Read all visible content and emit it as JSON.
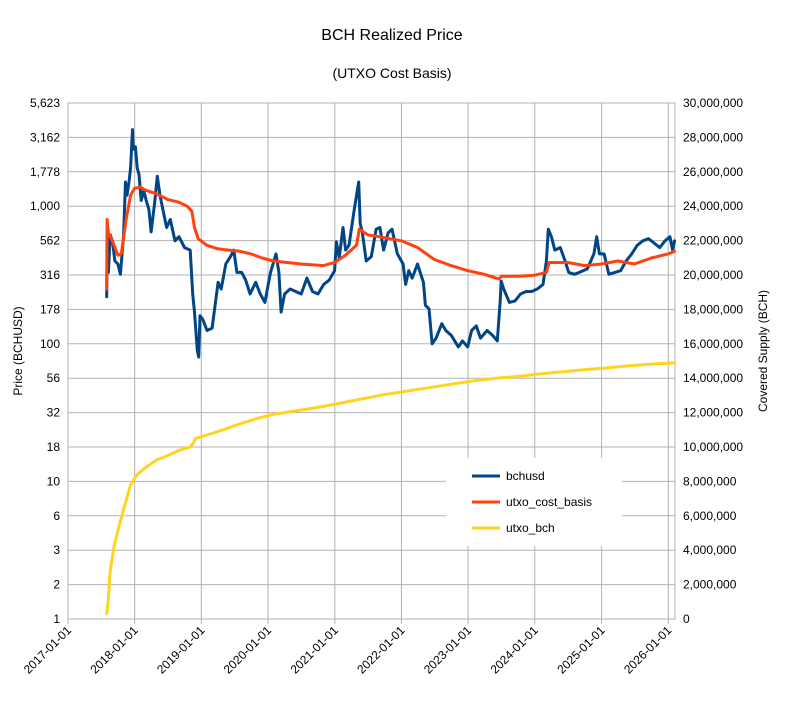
{
  "chart_data": {
    "type": "line",
    "title": "BCH Realized Price",
    "subtitle": "(UTXO Cost Basis)",
    "ylabel_left": "Price (BCHUSD)",
    "ylabel_right": "Covered Supply (BCH)",
    "y_scale_left": "log",
    "ylim_left": [
      1,
      5623
    ],
    "ylim_right": [
      0,
      30000000
    ],
    "xlim": [
      "2017-01-01",
      "2026-02-07"
    ],
    "grid": true,
    "legend_position": "center-right",
    "left_ticks": [
      {
        "value": 1,
        "label": "1"
      },
      {
        "value": 1.778,
        "label": "2"
      },
      {
        "value": 3.162,
        "label": "3"
      },
      {
        "value": 5.623,
        "label": "6"
      },
      {
        "value": 10,
        "label": "10"
      },
      {
        "value": 17.78,
        "label": "18"
      },
      {
        "value": 31.62,
        "label": "32"
      },
      {
        "value": 56.23,
        "label": "56"
      },
      {
        "value": 100,
        "label": "100"
      },
      {
        "value": 177.8,
        "label": "178"
      },
      {
        "value": 316.2,
        "label": "316"
      },
      {
        "value": 562.3,
        "label": "562"
      },
      {
        "value": 1000,
        "label": "1,000"
      },
      {
        "value": 1778,
        "label": "1,778"
      },
      {
        "value": 3162,
        "label": "3,162"
      },
      {
        "value": 5623,
        "label": "5,623"
      }
    ],
    "right_ticks": [
      {
        "value": 0,
        "label": "0"
      },
      {
        "value": 2000000,
        "label": "2,000,000"
      },
      {
        "value": 4000000,
        "label": "4,000,000"
      },
      {
        "value": 6000000,
        "label": "6,000,000"
      },
      {
        "value": 8000000,
        "label": "8,000,000"
      },
      {
        "value": 10000000,
        "label": "10,000,000"
      },
      {
        "value": 12000000,
        "label": "12,000,000"
      },
      {
        "value": 14000000,
        "label": "14,000,000"
      },
      {
        "value": 16000000,
        "label": "16,000,000"
      },
      {
        "value": 18000000,
        "label": "18,000,000"
      },
      {
        "value": 20000000,
        "label": "20,000,000"
      },
      {
        "value": 22000000,
        "label": "22,000,000"
      },
      {
        "value": 24000000,
        "label": "24,000,000"
      },
      {
        "value": 26000000,
        "label": "26,000,000"
      },
      {
        "value": 28000000,
        "label": "28,000,000"
      },
      {
        "value": 30000000,
        "label": "30,000,000"
      }
    ],
    "x_ticks": [
      "2017-01-01",
      "2018-01-01",
      "2019-01-01",
      "2020-01-01",
      "2021-01-01",
      "2022-01-01",
      "2023-01-01",
      "2024-01-01",
      "2025-01-01",
      "2026-01-01"
    ],
    "series": [
      {
        "name": "bchusd",
        "color": "#004586",
        "axis": "left",
        "points": [
          [
            "2017-08-01",
            220
          ],
          [
            "2017-08-04",
            700
          ],
          [
            "2017-08-10",
            330
          ],
          [
            "2017-08-20",
            620
          ],
          [
            "2017-09-01",
            560
          ],
          [
            "2017-09-15",
            400
          ],
          [
            "2017-10-01",
            380
          ],
          [
            "2017-10-15",
            320
          ],
          [
            "2017-11-01",
            600
          ],
          [
            "2017-11-12",
            1500
          ],
          [
            "2017-11-20",
            1200
          ],
          [
            "2017-12-01",
            1500
          ],
          [
            "2017-12-10",
            1900
          ],
          [
            "2017-12-20",
            3600
          ],
          [
            "2017-12-24",
            2600
          ],
          [
            "2018-01-05",
            2700
          ],
          [
            "2018-01-15",
            1900
          ],
          [
            "2018-01-25",
            1700
          ],
          [
            "2018-02-06",
            1100
          ],
          [
            "2018-02-20",
            1300
          ],
          [
            "2018-03-05",
            1100
          ],
          [
            "2018-03-20",
            950
          ],
          [
            "2018-04-01",
            650
          ],
          [
            "2018-04-20",
            1050
          ],
          [
            "2018-05-05",
            1650
          ],
          [
            "2018-05-20",
            1200
          ],
          [
            "2018-06-01",
            1000
          ],
          [
            "2018-06-25",
            700
          ],
          [
            "2018-07-15",
            800
          ],
          [
            "2018-08-10",
            560
          ],
          [
            "2018-09-01",
            600
          ],
          [
            "2018-10-01",
            500
          ],
          [
            "2018-11-01",
            480
          ],
          [
            "2018-11-15",
            230
          ],
          [
            "2018-11-25",
            170
          ],
          [
            "2018-12-10",
            90
          ],
          [
            "2018-12-18",
            80
          ],
          [
            "2018-12-25",
            160
          ],
          [
            "2019-01-10",
            150
          ],
          [
            "2019-02-01",
            125
          ],
          [
            "2019-03-01",
            130
          ],
          [
            "2019-04-03",
            280
          ],
          [
            "2019-04-20",
            250
          ],
          [
            "2019-05-15",
            380
          ],
          [
            "2019-06-10",
            430
          ],
          [
            "2019-06-28",
            480
          ],
          [
            "2019-07-15",
            330
          ],
          [
            "2019-08-10",
            330
          ],
          [
            "2019-09-01",
            290
          ],
          [
            "2019-09-25",
            230
          ],
          [
            "2019-10-26",
            280
          ],
          [
            "2019-11-20",
            230
          ],
          [
            "2019-12-15",
            200
          ],
          [
            "2020-01-15",
            330
          ],
          [
            "2020-02-14",
            450
          ],
          [
            "2020-03-01",
            330
          ],
          [
            "2020-03-13",
            170
          ],
          [
            "2020-04-01",
            230
          ],
          [
            "2020-05-01",
            250
          ],
          [
            "2020-06-01",
            240
          ],
          [
            "2020-07-01",
            230
          ],
          [
            "2020-08-01",
            300
          ],
          [
            "2020-09-01",
            240
          ],
          [
            "2020-10-01",
            230
          ],
          [
            "2020-11-01",
            270
          ],
          [
            "2020-12-01",
            290
          ],
          [
            "2020-12-31",
            340
          ],
          [
            "2021-01-10",
            550
          ],
          [
            "2021-01-25",
            420
          ],
          [
            "2021-02-15",
            700
          ],
          [
            "2021-03-01",
            480
          ],
          [
            "2021-03-20",
            520
          ],
          [
            "2021-04-15",
            900
          ],
          [
            "2021-05-12",
            1500
          ],
          [
            "2021-05-20",
            750
          ],
          [
            "2021-06-01",
            640
          ],
          [
            "2021-06-22",
            400
          ],
          [
            "2021-07-20",
            430
          ],
          [
            "2021-08-15",
            680
          ],
          [
            "2021-09-05",
            700
          ],
          [
            "2021-09-25",
            480
          ],
          [
            "2021-10-20",
            640
          ],
          [
            "2021-11-10",
            680
          ],
          [
            "2021-12-10",
            450
          ],
          [
            "2022-01-10",
            380
          ],
          [
            "2022-01-24",
            270
          ],
          [
            "2022-02-10",
            340
          ],
          [
            "2022-03-01",
            300
          ],
          [
            "2022-03-30",
            380
          ],
          [
            "2022-05-01",
            280
          ],
          [
            "2022-05-12",
            190
          ],
          [
            "2022-06-01",
            180
          ],
          [
            "2022-06-18",
            100
          ],
          [
            "2022-07-10",
            110
          ],
          [
            "2022-08-10",
            140
          ],
          [
            "2022-09-01",
            125
          ],
          [
            "2022-10-01",
            115
          ],
          [
            "2022-11-09",
            95
          ],
          [
            "2022-12-01",
            105
          ],
          [
            "2022-12-30",
            95
          ],
          [
            "2023-01-20",
            125
          ],
          [
            "2023-02-15",
            135
          ],
          [
            "2023-03-10",
            110
          ],
          [
            "2023-04-15",
            125
          ],
          [
            "2023-05-15",
            115
          ],
          [
            "2023-06-10",
            105
          ],
          [
            "2023-06-25",
            200
          ],
          [
            "2023-07-01",
            285
          ],
          [
            "2023-07-15",
            250
          ],
          [
            "2023-08-15",
            200
          ],
          [
            "2023-09-15",
            205
          ],
          [
            "2023-10-15",
            230
          ],
          [
            "2023-11-15",
            240
          ],
          [
            "2023-12-15",
            240
          ],
          [
            "2024-01-15",
            250
          ],
          [
            "2024-02-15",
            270
          ],
          [
            "2024-03-05",
            400
          ],
          [
            "2024-03-15",
            680
          ],
          [
            "2024-04-01",
            600
          ],
          [
            "2024-04-20",
            480
          ],
          [
            "2024-05-20",
            500
          ],
          [
            "2024-06-15",
            400
          ],
          [
            "2024-07-05",
            330
          ],
          [
            "2024-08-05",
            320
          ],
          [
            "2024-09-01",
            330
          ],
          [
            "2024-10-15",
            350
          ],
          [
            "2024-11-20",
            450
          ],
          [
            "2024-12-05",
            600
          ],
          [
            "2024-12-20",
            450
          ],
          [
            "2025-01-15",
            450
          ],
          [
            "2025-02-10",
            320
          ],
          [
            "2025-03-15",
            330
          ],
          [
            "2025-04-15",
            340
          ],
          [
            "2025-05-15",
            400
          ],
          [
            "2025-06-15",
            450
          ],
          [
            "2025-07-15",
            520
          ],
          [
            "2025-08-15",
            560
          ],
          [
            "2025-09-15",
            580
          ],
          [
            "2025-10-15",
            540
          ],
          [
            "2025-11-15",
            500
          ],
          [
            "2025-12-15",
            560
          ],
          [
            "2026-01-10",
            600
          ],
          [
            "2026-01-25",
            480
          ],
          [
            "2026-02-05",
            560
          ]
        ]
      },
      {
        "name": "utxo_cost_basis",
        "color": "#ff420e",
        "axis": "left",
        "points": [
          [
            "2017-08-01",
            250
          ],
          [
            "2017-08-03",
            800
          ],
          [
            "2017-08-10",
            640
          ],
          [
            "2017-09-01",
            560
          ],
          [
            "2017-10-01",
            440
          ],
          [
            "2017-10-20",
            450
          ],
          [
            "2017-11-15",
            800
          ],
          [
            "2017-12-10",
            1200
          ],
          [
            "2017-12-31",
            1350
          ],
          [
            "2018-01-31",
            1380
          ],
          [
            "2018-02-28",
            1310
          ],
          [
            "2018-04-30",
            1230
          ],
          [
            "2018-06-30",
            1120
          ],
          [
            "2018-08-31",
            1070
          ],
          [
            "2018-10-15",
            1000
          ],
          [
            "2018-11-10",
            920
          ],
          [
            "2018-11-25",
            700
          ],
          [
            "2018-12-15",
            580
          ],
          [
            "2019-01-31",
            520
          ],
          [
            "2019-03-31",
            490
          ],
          [
            "2019-05-31",
            480
          ],
          [
            "2019-07-31",
            470
          ],
          [
            "2019-09-30",
            450
          ],
          [
            "2019-11-30",
            420
          ],
          [
            "2020-01-31",
            400
          ],
          [
            "2020-06-30",
            380
          ],
          [
            "2020-10-31",
            370
          ],
          [
            "2020-12-31",
            390
          ],
          [
            "2021-02-28",
            440
          ],
          [
            "2021-04-30",
            520
          ],
          [
            "2021-05-15",
            680
          ],
          [
            "2021-06-30",
            620
          ],
          [
            "2021-09-30",
            590
          ],
          [
            "2021-12-31",
            560
          ],
          [
            "2022-03-31",
            500
          ],
          [
            "2022-06-30",
            410
          ],
          [
            "2022-09-30",
            370
          ],
          [
            "2022-12-31",
            340
          ],
          [
            "2023-03-31",
            320
          ],
          [
            "2023-06-20",
            295
          ],
          [
            "2023-07-01",
            310
          ],
          [
            "2023-09-30",
            310
          ],
          [
            "2023-12-31",
            315
          ],
          [
            "2024-03-05",
            330
          ],
          [
            "2024-03-20",
            390
          ],
          [
            "2024-06-30",
            390
          ],
          [
            "2024-09-30",
            370
          ],
          [
            "2024-12-31",
            380
          ],
          [
            "2025-03-31",
            400
          ],
          [
            "2025-06-30",
            380
          ],
          [
            "2025-09-30",
            420
          ],
          [
            "2025-12-31",
            450
          ],
          [
            "2026-02-05",
            470
          ]
        ]
      },
      {
        "name": "utxo_bch",
        "color": "#ffd320",
        "axis": "right",
        "points": [
          [
            "2017-08-01",
            300000
          ],
          [
            "2017-08-10",
            1200000
          ],
          [
            "2017-08-20",
            2800000
          ],
          [
            "2017-09-10",
            4200000
          ],
          [
            "2017-10-10",
            5500000
          ],
          [
            "2017-11-10",
            6700000
          ],
          [
            "2017-12-10",
            7800000
          ],
          [
            "2018-01-15",
            8400000
          ],
          [
            "2018-03-01",
            8800000
          ],
          [
            "2018-05-01",
            9250000
          ],
          [
            "2018-07-01",
            9500000
          ],
          [
            "2018-09-01",
            9800000
          ],
          [
            "2018-11-01",
            10000000
          ],
          [
            "2018-11-20",
            10250000
          ],
          [
            "2018-12-01",
            10500000
          ],
          [
            "2019-02-01",
            10700000
          ],
          [
            "2019-05-01",
            11000000
          ],
          [
            "2019-08-01",
            11350000
          ],
          [
            "2019-11-01",
            11650000
          ],
          [
            "2020-02-01",
            11900000
          ],
          [
            "2020-06-01",
            12100000
          ],
          [
            "2020-10-01",
            12300000
          ],
          [
            "2021-02-01",
            12550000
          ],
          [
            "2021-06-01",
            12800000
          ],
          [
            "2021-10-01",
            13050000
          ],
          [
            "2022-01-01",
            13200000
          ],
          [
            "2022-06-01",
            13450000
          ],
          [
            "2022-10-01",
            13650000
          ],
          [
            "2023-02-01",
            13850000
          ],
          [
            "2023-06-01",
            14000000
          ],
          [
            "2023-10-01",
            14100000
          ],
          [
            "2024-02-01",
            14250000
          ],
          [
            "2024-06-01",
            14380000
          ],
          [
            "2024-10-01",
            14500000
          ],
          [
            "2025-02-01",
            14600000
          ],
          [
            "2025-06-01",
            14720000
          ],
          [
            "2025-10-01",
            14820000
          ],
          [
            "2026-02-05",
            14900000
          ]
        ]
      }
    ]
  }
}
